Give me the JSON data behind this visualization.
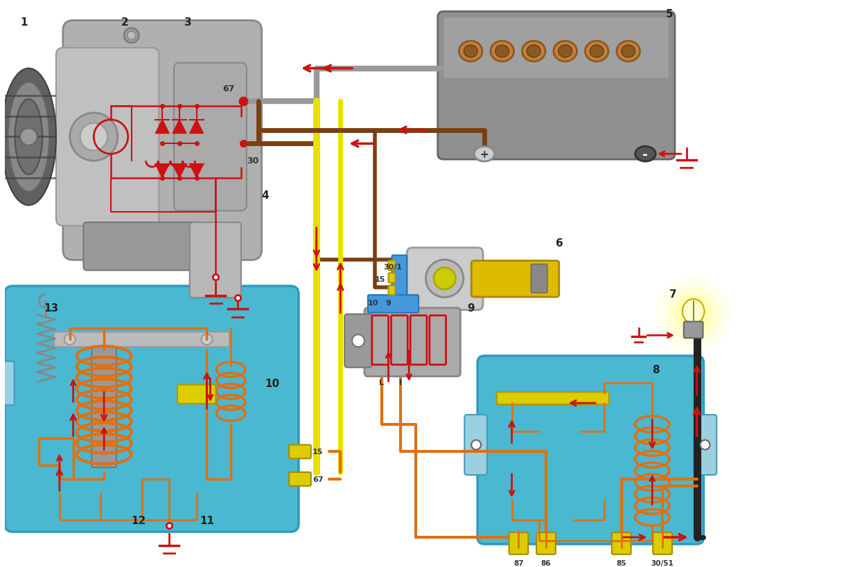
{
  "bg_color": "#ffffff",
  "fig_width": 12.18,
  "fig_height": 8.2,
  "dpi": 100,
  "colors": {
    "red": "#cc1111",
    "orange": "#e07010",
    "brown": "#7a4010",
    "yellow": "#e8e000",
    "blue_bg": "#4ab8d0",
    "gray_dark": "#808080",
    "gray_mid": "#aaaaaa",
    "gray_light": "#cccccc",
    "gray_body": "#999999",
    "yellow_pin": "#d4b000",
    "black": "#222222",
    "white": "#ffffff",
    "copper": "#b87333"
  }
}
